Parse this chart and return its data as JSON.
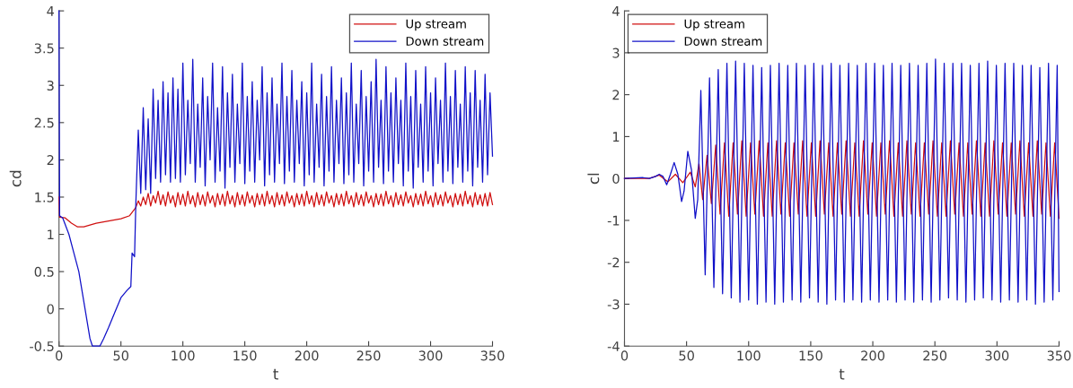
{
  "chart_data": [
    {
      "type": "line",
      "xlabel": "t",
      "ylabel": "cd",
      "xlim": [
        0,
        350
      ],
      "ylim": [
        -0.5,
        4
      ],
      "xticks": [
        0,
        50,
        100,
        150,
        200,
        250,
        300,
        350
      ],
      "yticks": [
        -0.5,
        0,
        0.5,
        1,
        1.5,
        2,
        2.5,
        3,
        3.5,
        4
      ],
      "legend": "top right",
      "series": [
        {
          "name": "Up stream",
          "color": "#d01010",
          "x": [
            0,
            0.5,
            5,
            10,
            15,
            20,
            30,
            40,
            50,
            57,
            62,
            64,
            66,
            68,
            70,
            72,
            74,
            76,
            78,
            80,
            82,
            84,
            86,
            88,
            90,
            92,
            94,
            96,
            98,
            100,
            102,
            104,
            106,
            108,
            110,
            112,
            114,
            116,
            118,
            120,
            122,
            124,
            126,
            128,
            130,
            132,
            134,
            136,
            138,
            140,
            142,
            144,
            146,
            148,
            150,
            152,
            154,
            156,
            158,
            160,
            162,
            164,
            166,
            168,
            170,
            172,
            174,
            176,
            178,
            180,
            182,
            184,
            186,
            188,
            190,
            192,
            194,
            196,
            198,
            200,
            202,
            204,
            206,
            208,
            210,
            212,
            214,
            216,
            218,
            220,
            222,
            224,
            226,
            228,
            230,
            232,
            234,
            236,
            238,
            240,
            242,
            244,
            246,
            248,
            250,
            252,
            254,
            256,
            258,
            260,
            262,
            264,
            266,
            268,
            270,
            272,
            274,
            276,
            278,
            280,
            282,
            284,
            286,
            288,
            290,
            292,
            294,
            296,
            298,
            300,
            302,
            304,
            306,
            308,
            310,
            312,
            314,
            316,
            318,
            320,
            322,
            324,
            326,
            328,
            330,
            332,
            334,
            336,
            338,
            340,
            342,
            344,
            346,
            348,
            350
          ],
          "values": [
            1.5,
            1.23,
            1.22,
            1.15,
            1.1,
            1.1,
            1.15,
            1.18,
            1.21,
            1.25,
            1.36,
            1.45,
            1.38,
            1.5,
            1.4,
            1.55,
            1.38,
            1.52,
            1.42,
            1.58,
            1.4,
            1.53,
            1.38,
            1.57,
            1.42,
            1.52,
            1.37,
            1.56,
            1.4,
            1.54,
            1.38,
            1.58,
            1.41,
            1.52,
            1.37,
            1.56,
            1.4,
            1.53,
            1.38,
            1.57,
            1.42,
            1.52,
            1.37,
            1.55,
            1.4,
            1.54,
            1.38,
            1.58,
            1.41,
            1.52,
            1.37,
            1.56,
            1.4,
            1.53,
            1.38,
            1.57,
            1.42,
            1.52,
            1.37,
            1.55,
            1.4,
            1.54,
            1.38,
            1.58,
            1.41,
            1.52,
            1.37,
            1.56,
            1.4,
            1.53,
            1.38,
            1.57,
            1.42,
            1.52,
            1.37,
            1.55,
            1.4,
            1.54,
            1.38,
            1.58,
            1.41,
            1.52,
            1.37,
            1.56,
            1.4,
            1.53,
            1.38,
            1.57,
            1.42,
            1.52,
            1.37,
            1.55,
            1.4,
            1.54,
            1.38,
            1.58,
            1.41,
            1.52,
            1.37,
            1.56,
            1.4,
            1.53,
            1.38,
            1.57,
            1.42,
            1.52,
            1.37,
            1.55,
            1.4,
            1.54,
            1.38,
            1.58,
            1.41,
            1.52,
            1.37,
            1.56,
            1.4,
            1.53,
            1.38,
            1.57,
            1.42,
            1.52,
            1.37,
            1.55,
            1.4,
            1.54,
            1.38,
            1.58,
            1.41,
            1.52,
            1.37,
            1.56,
            1.4,
            1.53,
            1.38,
            1.57,
            1.42,
            1.52,
            1.37,
            1.55,
            1.4,
            1.54,
            1.38,
            1.58,
            1.41,
            1.52,
            1.37,
            1.56,
            1.4,
            1.53,
            1.38,
            1.55,
            1.38,
            1.56,
            1.4
          ]
        },
        {
          "name": "Down stream",
          "color": "#1010c8",
          "x": [
            0,
            0.5,
            3,
            8,
            12,
            16,
            20,
            25,
            27,
            33,
            36,
            40,
            45,
            50,
            55,
            58,
            59,
            61,
            62,
            64,
            66,
            68,
            70,
            72,
            74,
            76,
            78,
            80,
            82,
            84,
            86,
            88,
            90,
            92,
            94,
            96,
            98,
            100,
            102,
            104,
            106,
            108,
            110,
            112,
            114,
            116,
            118,
            120,
            122,
            124,
            126,
            128,
            130,
            132,
            134,
            136,
            138,
            140,
            142,
            144,
            146,
            148,
            150,
            152,
            154,
            156,
            158,
            160,
            162,
            164,
            166,
            168,
            170,
            172,
            174,
            176,
            178,
            180,
            182,
            184,
            186,
            188,
            190,
            192,
            194,
            196,
            198,
            200,
            202,
            204,
            206,
            208,
            210,
            212,
            214,
            216,
            218,
            220,
            222,
            224,
            226,
            228,
            230,
            232,
            234,
            236,
            238,
            240,
            242,
            244,
            246,
            248,
            250,
            252,
            254,
            256,
            258,
            260,
            262,
            264,
            266,
            268,
            270,
            272,
            274,
            276,
            278,
            280,
            282,
            284,
            286,
            288,
            290,
            292,
            294,
            296,
            298,
            300,
            302,
            304,
            306,
            308,
            310,
            312,
            314,
            316,
            318,
            320,
            322,
            324,
            326,
            328,
            330,
            332,
            334,
            336,
            338,
            340,
            342,
            344,
            346,
            348,
            350
          ],
          "values": [
            4,
            1.25,
            1.22,
            1.0,
            0.75,
            0.5,
            0.1,
            -0.4,
            -0.5,
            -0.5,
            -0.4,
            -0.25,
            -0.05,
            0.15,
            0.25,
            0.3,
            0.75,
            0.7,
            1.4,
            2.4,
            1.55,
            2.7,
            1.6,
            2.55,
            1.55,
            2.95,
            1.75,
            2.8,
            1.7,
            3.05,
            1.8,
            2.9,
            1.7,
            3.1,
            1.75,
            2.95,
            1.7,
            3.3,
            1.8,
            2.8,
            1.95,
            3.35,
            1.7,
            2.75,
            1.9,
            3.1,
            1.65,
            2.85,
            2.0,
            3.3,
            1.7,
            2.7,
            1.85,
            3.25,
            1.62,
            2.9,
            1.9,
            3.15,
            1.7,
            2.75,
            1.95,
            3.3,
            1.68,
            2.85,
            1.85,
            3.05,
            1.7,
            2.8,
            2.0,
            3.25,
            1.65,
            2.9,
            1.8,
            3.1,
            1.7,
            2.75,
            1.95,
            3.3,
            1.68,
            2.85,
            1.85,
            3.2,
            1.7,
            2.8,
            1.95,
            3.05,
            1.65,
            2.9,
            1.8,
            3.3,
            1.7,
            2.75,
            1.9,
            3.15,
            1.65,
            2.85,
            1.85,
            3.25,
            1.7,
            2.8,
            1.95,
            3.1,
            1.68,
            2.9,
            1.8,
            3.3,
            1.7,
            2.75,
            1.95,
            3.2,
            1.65,
            2.85,
            1.85,
            3.05,
            1.7,
            3.35,
            1.9,
            2.8,
            1.68,
            3.25,
            1.85,
            2.9,
            1.7,
            3.1,
            1.95,
            2.8,
            1.65,
            3.3,
            1.85,
            2.85,
            1.62,
            3.2,
            1.9,
            2.75,
            1.7,
            3.25,
            1.85,
            2.9,
            1.65,
            3.1,
            1.95,
            2.8,
            1.7,
            3.3,
            1.85,
            2.85,
            1.68,
            3.2,
            1.9,
            2.75,
            1.7,
            3.25,
            1.85,
            2.9,
            1.65,
            3.2,
            1.9,
            2.8,
            1.7,
            3.15,
            1.8,
            2.9,
            2.05
          ]
        }
      ]
    },
    {
      "type": "line",
      "xlabel": "t",
      "ylabel": "cl",
      "xlim": [
        0,
        350
      ],
      "ylim": [
        -4,
        4
      ],
      "xticks": [
        0,
        50,
        100,
        150,
        200,
        250,
        300,
        350
      ],
      "yticks": [
        -4,
        -3,
        -2,
        -1,
        0,
        1,
        2,
        3,
        4
      ],
      "legend": "top left",
      "series": [
        {
          "name": "Up stream",
          "color": "#d01010",
          "x": [
            0,
            20,
            28,
            35,
            41,
            47,
            53,
            57,
            60,
            63,
            66.5,
            70,
            73.5,
            77,
            80.5,
            84,
            87.5,
            91,
            94.5,
            98,
            101.5,
            105,
            108.5,
            112,
            115.5,
            119,
            122.5,
            126,
            129.5,
            133,
            136.5,
            140,
            143.5,
            147,
            150.5,
            154,
            157.5,
            161,
            164.5,
            168,
            171.5,
            175,
            178.5,
            182,
            185.5,
            189,
            192.5,
            196,
            199.5,
            203,
            206.5,
            210,
            213.5,
            217,
            220.5,
            224,
            227.5,
            231,
            234.5,
            238,
            241.5,
            245,
            248.5,
            252,
            255.5,
            259,
            262.5,
            266,
            269.5,
            273,
            276.5,
            280,
            283.5,
            287,
            290.5,
            294,
            297.5,
            301,
            304.5,
            308,
            311.5,
            315,
            318.5,
            322,
            325.5,
            329,
            332.5,
            336,
            339.5,
            343,
            346.5,
            350
          ],
          "values": [
            0,
            0,
            0.08,
            -0.08,
            0.1,
            -0.1,
            0.15,
            -0.2,
            0.35,
            -0.5,
            0.55,
            -0.6,
            0.8,
            -0.85,
            0.85,
            -0.9,
            0.85,
            -0.85,
            0.9,
            -0.9,
            0.85,
            -0.85,
            0.9,
            -0.9,
            0.85,
            -0.9,
            0.9,
            -0.85,
            0.85,
            -0.9,
            0.85,
            -0.85,
            0.9,
            -0.9,
            0.85,
            -0.9,
            0.9,
            -0.85,
            0.85,
            -0.9,
            0.85,
            -0.85,
            0.9,
            -0.9,
            0.85,
            -0.9,
            0.9,
            -0.85,
            0.85,
            -0.9,
            0.85,
            -0.85,
            0.9,
            -0.9,
            0.85,
            -0.9,
            0.9,
            -0.85,
            0.85,
            -0.9,
            0.85,
            -0.85,
            0.9,
            -0.9,
            0.85,
            -0.9,
            0.9,
            -0.85,
            0.85,
            -0.9,
            0.85,
            -0.85,
            0.9,
            -0.9,
            0.85,
            -0.9,
            0.9,
            -0.85,
            0.85,
            -0.9,
            0.85,
            -0.85,
            0.9,
            -0.9,
            0.85,
            -0.9,
            0.9,
            -0.85,
            0.85,
            -0.9,
            0.85,
            -0.95
          ]
        },
        {
          "name": "Down stream",
          "color": "#1010c8",
          "x": [
            0,
            15,
            20,
            25,
            28,
            31,
            34,
            37,
            40,
            43,
            46,
            48,
            51,
            54,
            57,
            59,
            61.5,
            65,
            68.5,
            72,
            75.5,
            79,
            82.5,
            86,
            89.5,
            93,
            96.5,
            100,
            103.5,
            107,
            110.5,
            114,
            117.5,
            121,
            124.5,
            128,
            131.5,
            135,
            138.5,
            142,
            145.5,
            149,
            152.5,
            156,
            159.5,
            163,
            166.5,
            170,
            173.5,
            177,
            180.5,
            184,
            187.5,
            191,
            194.5,
            198,
            201.5,
            205,
            208.5,
            212,
            215.5,
            219,
            222.5,
            226,
            229.5,
            233,
            236.5,
            240,
            243.5,
            247,
            250.5,
            254,
            257.5,
            261,
            264.5,
            268,
            271.5,
            275,
            278.5,
            282,
            285.5,
            289,
            292.5,
            296,
            299.5,
            303,
            306.5,
            310,
            313.5,
            317,
            320.5,
            324,
            327.5,
            331,
            334.5,
            338,
            341.5,
            345,
            348.5,
            350
          ],
          "values": [
            0,
            0.02,
            0,
            0.05,
            0.1,
            0.05,
            -0.15,
            0.1,
            0.38,
            0.1,
            -0.55,
            -0.3,
            0.65,
            0.2,
            -0.95,
            -0.5,
            2.1,
            -2.3,
            2.4,
            -2.6,
            2.6,
            -2.75,
            2.75,
            -2.85,
            2.8,
            -2.95,
            2.75,
            -2.9,
            2.7,
            -3.0,
            2.65,
            -2.95,
            2.7,
            -3.0,
            2.75,
            -2.95,
            2.7,
            -2.9,
            2.75,
            -2.95,
            2.7,
            -2.85,
            2.75,
            -2.95,
            2.7,
            -3.0,
            2.75,
            -2.9,
            2.7,
            -2.95,
            2.75,
            -2.9,
            2.7,
            -2.95,
            2.75,
            -2.9,
            2.75,
            -2.95,
            2.7,
            -2.9,
            2.75,
            -2.95,
            2.7,
            -2.9,
            2.75,
            -2.95,
            2.7,
            -2.9,
            2.75,
            -2.95,
            2.85,
            -2.9,
            2.75,
            -2.85,
            2.75,
            -2.9,
            2.75,
            -2.95,
            2.7,
            -2.9,
            2.75,
            -2.85,
            2.8,
            -2.9,
            2.7,
            -2.95,
            2.75,
            -2.9,
            2.75,
            -2.95,
            2.7,
            -2.9,
            2.7,
            -3.0,
            2.65,
            -2.95,
            2.75,
            -2.9,
            2.7,
            -2.7
          ]
        }
      ]
    }
  ]
}
